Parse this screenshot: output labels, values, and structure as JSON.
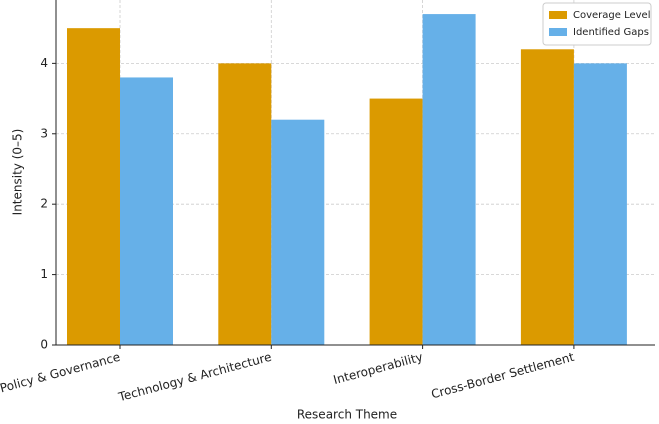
{
  "chart_data": {
    "type": "bar",
    "x_label": "Research Theme",
    "y_label": "Intensity (0–5)",
    "categories": [
      "Policy & Governance",
      "Technology & Architecture",
      "Interoperability",
      "Cross-Border Settlement"
    ],
    "series": [
      {
        "name": "Coverage Level",
        "color": "#db9a00",
        "values": [
          4.5,
          4.0,
          3.5,
          4.2
        ]
      },
      {
        "name": "Identified Gaps",
        "color": "#66b0e8",
        "values": [
          3.8,
          3.2,
          4.7,
          4.0
        ]
      }
    ],
    "ylim": [
      0,
      4.9
    ],
    "yticks": [
      0,
      1,
      2,
      3,
      4
    ],
    "grid": true,
    "legend": "upper right"
  }
}
